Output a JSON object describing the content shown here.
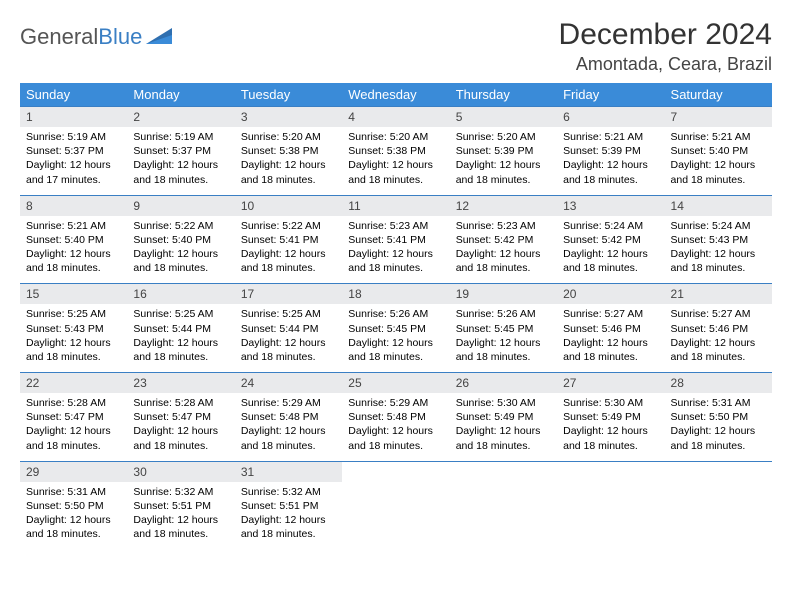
{
  "brand": {
    "part1": "General",
    "part2": "Blue"
  },
  "title": "December 2024",
  "location": "Amontada, Ceara, Brazil",
  "colors": {
    "header_bg": "#3a8bd8",
    "header_text": "#ffffff",
    "daynum_bg": "#e9eaec",
    "rule": "#3a7fc4",
    "brand_gray": "#555555",
    "brand_blue": "#3a7fc4"
  },
  "fonts": {
    "title_size": 30,
    "location_size": 18,
    "dow_size": 13,
    "daynum_size": 12,
    "body_size": 10.5
  },
  "dow": [
    "Sunday",
    "Monday",
    "Tuesday",
    "Wednesday",
    "Thursday",
    "Friday",
    "Saturday"
  ],
  "days": [
    {
      "n": "1",
      "sr": "5:19 AM",
      "ss": "5:37 PM",
      "dl": "12 hours and 17 minutes."
    },
    {
      "n": "2",
      "sr": "5:19 AM",
      "ss": "5:37 PM",
      "dl": "12 hours and 18 minutes."
    },
    {
      "n": "3",
      "sr": "5:20 AM",
      "ss": "5:38 PM",
      "dl": "12 hours and 18 minutes."
    },
    {
      "n": "4",
      "sr": "5:20 AM",
      "ss": "5:38 PM",
      "dl": "12 hours and 18 minutes."
    },
    {
      "n": "5",
      "sr": "5:20 AM",
      "ss": "5:39 PM",
      "dl": "12 hours and 18 minutes."
    },
    {
      "n": "6",
      "sr": "5:21 AM",
      "ss": "5:39 PM",
      "dl": "12 hours and 18 minutes."
    },
    {
      "n": "7",
      "sr": "5:21 AM",
      "ss": "5:40 PM",
      "dl": "12 hours and 18 minutes."
    },
    {
      "n": "8",
      "sr": "5:21 AM",
      "ss": "5:40 PM",
      "dl": "12 hours and 18 minutes."
    },
    {
      "n": "9",
      "sr": "5:22 AM",
      "ss": "5:40 PM",
      "dl": "12 hours and 18 minutes."
    },
    {
      "n": "10",
      "sr": "5:22 AM",
      "ss": "5:41 PM",
      "dl": "12 hours and 18 minutes."
    },
    {
      "n": "11",
      "sr": "5:23 AM",
      "ss": "5:41 PM",
      "dl": "12 hours and 18 minutes."
    },
    {
      "n": "12",
      "sr": "5:23 AM",
      "ss": "5:42 PM",
      "dl": "12 hours and 18 minutes."
    },
    {
      "n": "13",
      "sr": "5:24 AM",
      "ss": "5:42 PM",
      "dl": "12 hours and 18 minutes."
    },
    {
      "n": "14",
      "sr": "5:24 AM",
      "ss": "5:43 PM",
      "dl": "12 hours and 18 minutes."
    },
    {
      "n": "15",
      "sr": "5:25 AM",
      "ss": "5:43 PM",
      "dl": "12 hours and 18 minutes."
    },
    {
      "n": "16",
      "sr": "5:25 AM",
      "ss": "5:44 PM",
      "dl": "12 hours and 18 minutes."
    },
    {
      "n": "17",
      "sr": "5:25 AM",
      "ss": "5:44 PM",
      "dl": "12 hours and 18 minutes."
    },
    {
      "n": "18",
      "sr": "5:26 AM",
      "ss": "5:45 PM",
      "dl": "12 hours and 18 minutes."
    },
    {
      "n": "19",
      "sr": "5:26 AM",
      "ss": "5:45 PM",
      "dl": "12 hours and 18 minutes."
    },
    {
      "n": "20",
      "sr": "5:27 AM",
      "ss": "5:46 PM",
      "dl": "12 hours and 18 minutes."
    },
    {
      "n": "21",
      "sr": "5:27 AM",
      "ss": "5:46 PM",
      "dl": "12 hours and 18 minutes."
    },
    {
      "n": "22",
      "sr": "5:28 AM",
      "ss": "5:47 PM",
      "dl": "12 hours and 18 minutes."
    },
    {
      "n": "23",
      "sr": "5:28 AM",
      "ss": "5:47 PM",
      "dl": "12 hours and 18 minutes."
    },
    {
      "n": "24",
      "sr": "5:29 AM",
      "ss": "5:48 PM",
      "dl": "12 hours and 18 minutes."
    },
    {
      "n": "25",
      "sr": "5:29 AM",
      "ss": "5:48 PM",
      "dl": "12 hours and 18 minutes."
    },
    {
      "n": "26",
      "sr": "5:30 AM",
      "ss": "5:49 PM",
      "dl": "12 hours and 18 minutes."
    },
    {
      "n": "27",
      "sr": "5:30 AM",
      "ss": "5:49 PM",
      "dl": "12 hours and 18 minutes."
    },
    {
      "n": "28",
      "sr": "5:31 AM",
      "ss": "5:50 PM",
      "dl": "12 hours and 18 minutes."
    },
    {
      "n": "29",
      "sr": "5:31 AM",
      "ss": "5:50 PM",
      "dl": "12 hours and 18 minutes."
    },
    {
      "n": "30",
      "sr": "5:32 AM",
      "ss": "5:51 PM",
      "dl": "12 hours and 18 minutes."
    },
    {
      "n": "31",
      "sr": "5:32 AM",
      "ss": "5:51 PM",
      "dl": "12 hours and 18 minutes."
    }
  ],
  "labels": {
    "sunrise": "Sunrise: ",
    "sunset": "Sunset: ",
    "daylight": "Daylight: "
  }
}
